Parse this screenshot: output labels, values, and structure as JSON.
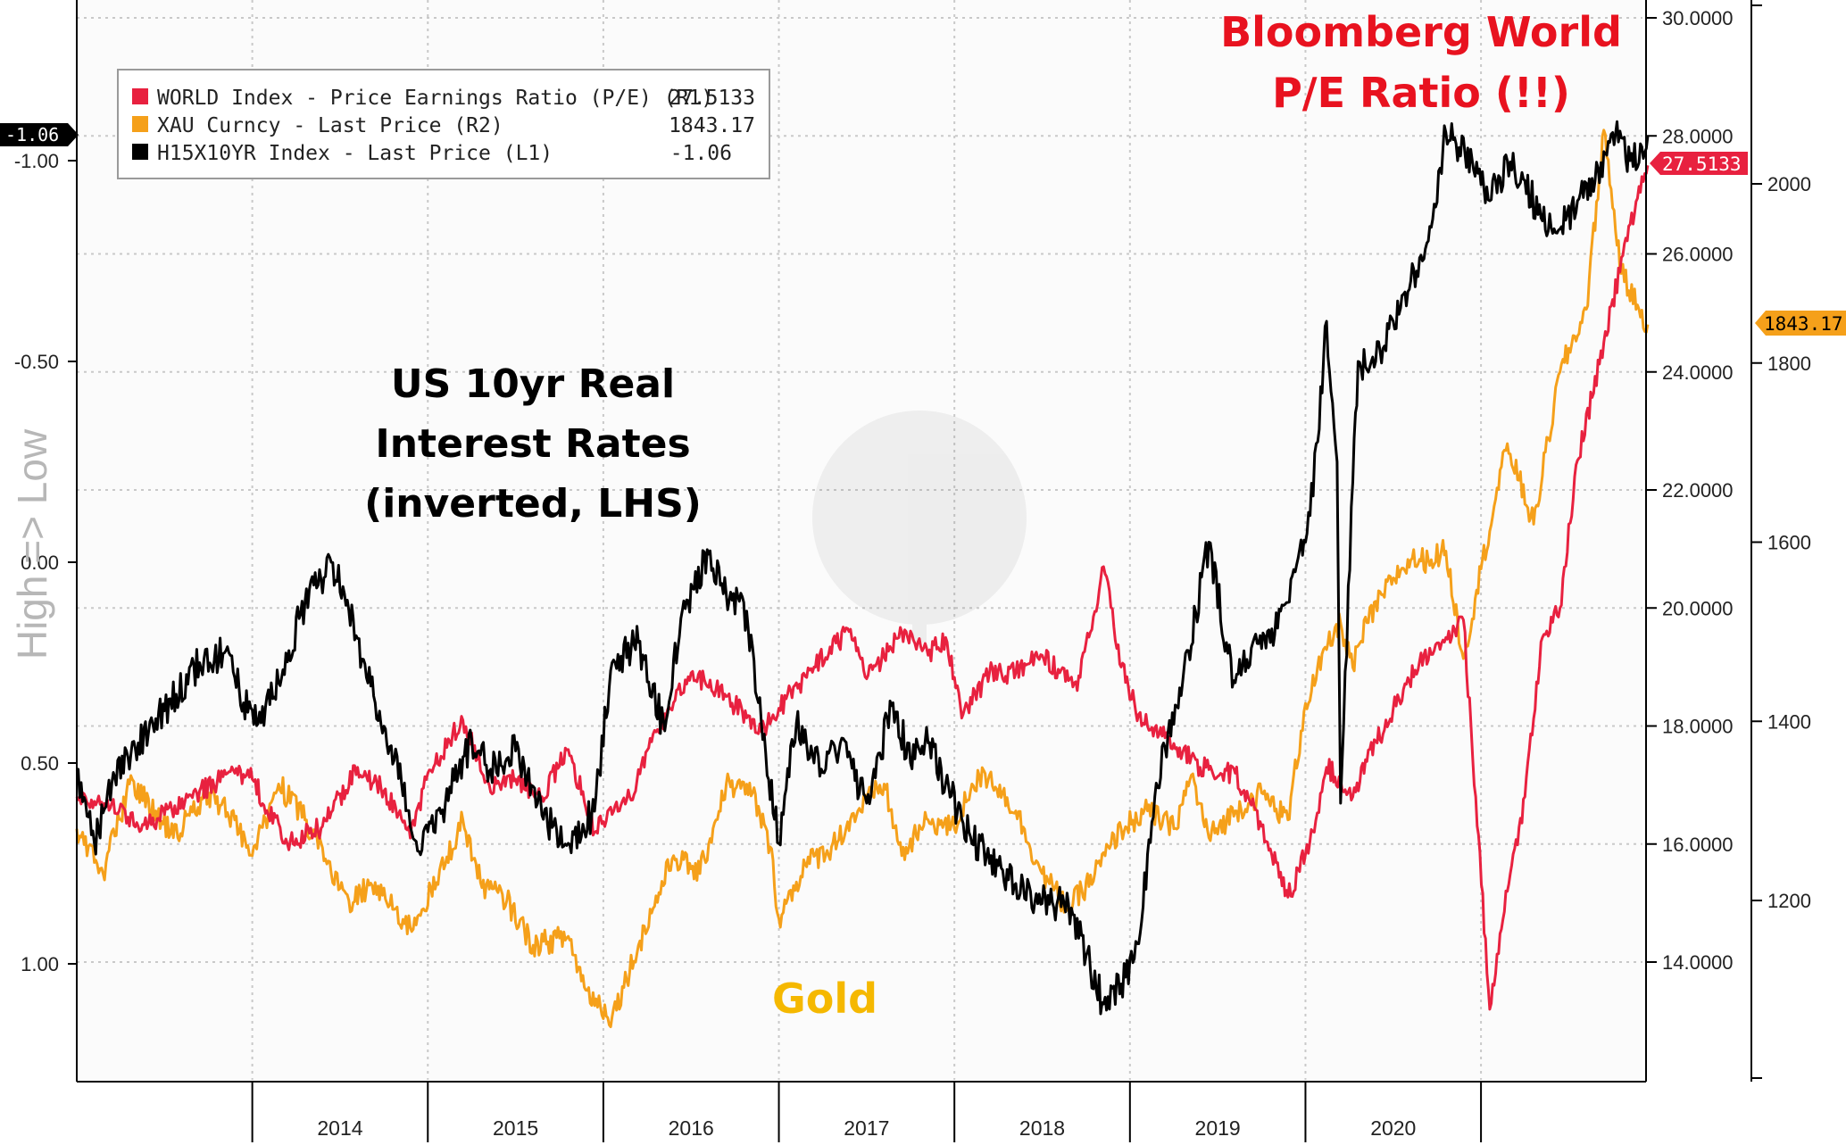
{
  "chart_data": {
    "type": "line",
    "title": "",
    "xlabel": "",
    "ylabel": "High => Low",
    "x_tick_labels": [
      "2014",
      "2015",
      "2016",
      "2017",
      "2018",
      "2019",
      "2020"
    ],
    "left_axis": {
      "inverted": true,
      "ylim": [
        1.3,
        -1.4
      ],
      "tick_labels": [
        "-1.00",
        "-0.50",
        "0.00",
        "0.50",
        "1.00"
      ],
      "tick_values": [
        -1.0,
        -0.5,
        0.0,
        0.5,
        1.0
      ]
    },
    "right_axis_1": {
      "ylim": [
        12.0,
        30.0
      ],
      "tick_labels": [
        "30.0000",
        "28.0000",
        "26.0000",
        "24.0000",
        "22.0000",
        "20.0000",
        "18.0000",
        "16.0000",
        "14.0000"
      ],
      "tick_values": [
        30,
        28,
        26,
        24,
        22,
        20,
        18,
        16,
        14
      ]
    },
    "right_axis_2": {
      "ylim": [
        1000,
        2200
      ],
      "tick_labels": [
        "2000",
        "1800",
        "1600",
        "1400",
        "1200"
      ],
      "tick_values": [
        2000,
        1800,
        1600,
        1400,
        1200
      ]
    },
    "legend": {
      "placement": "top-left",
      "entries": [
        {
          "name": "WORLD Index - Price Earnings Ratio (P/E) (R1)",
          "value": "27.5133",
          "color": "#e8213f"
        },
        {
          "name": "XAU Curncy - Last Price (R2)",
          "value": "1843.17",
          "color": "#f5a01a"
        },
        {
          "name": "H15X10YR Index - Last Price (L1)",
          "value": "-1.06",
          "color": "#000000"
        }
      ]
    },
    "last_value_tags": {
      "left": "-1.06",
      "r1": "27.5133",
      "r2": "1843.17"
    },
    "annotations": {
      "real_rates": [
        "US 10yr Real",
        "Interest Rates",
        "(inverted, LHS)"
      ],
      "gold": "Gold",
      "pe": [
        "Bloomberg World",
        "P/E Ratio (!!)"
      ]
    },
    "grid": true,
    "series": [
      {
        "key": "pe",
        "axis": "r1",
        "color": "#e8213f",
        "x": [
          2013.0,
          2013.2,
          2013.35,
          2013.5,
          2013.7,
          2013.9,
          2014.0,
          2014.2,
          2014.4,
          2014.6,
          2014.75,
          2014.9,
          2015.0,
          2015.2,
          2015.35,
          2015.5,
          2015.65,
          2015.8,
          2015.95,
          2016.05,
          2016.15,
          2016.3,
          2016.5,
          2016.7,
          2016.9,
          2017.0,
          2017.2,
          2017.4,
          2017.5,
          2017.7,
          2017.85,
          2017.95,
          2018.05,
          2018.2,
          2018.35,
          2018.5,
          2018.7,
          2018.85,
          2018.95,
          2019.05,
          2019.2,
          2019.4,
          2019.6,
          2019.75,
          2019.9,
          2020.05,
          2020.12,
          2020.2,
          2020.27,
          2020.35,
          2020.5,
          2020.65,
          2020.8,
          2020.9,
          2020.97,
          2021.05,
          2021.15,
          2021.25,
          2021.35,
          2021.45,
          2021.55,
          2021.7,
          2021.85,
          2021.95
        ],
        "y": [
          16.8,
          16.7,
          16.3,
          16.5,
          16.9,
          17.2,
          17.1,
          16.0,
          16.3,
          17.3,
          16.9,
          16.1,
          17.2,
          18.1,
          17.0,
          17.1,
          16.8,
          17.6,
          16.2,
          16.5,
          16.8,
          17.9,
          18.9,
          18.5,
          17.9,
          18.3,
          19.0,
          19.6,
          18.8,
          19.6,
          19.2,
          19.5,
          18.2,
          18.9,
          18.9,
          19.2,
          18.6,
          20.7,
          19.0,
          18.2,
          17.8,
          17.3,
          17.2,
          16.3,
          15.1,
          16.2,
          17.3,
          17.1,
          16.8,
          17.4,
          18.3,
          19.1,
          19.5,
          19.8,
          16.8,
          13.2,
          15.2,
          16.8,
          19.5,
          20.0,
          22.5,
          24.5,
          26.5,
          27.5
        ]
      },
      {
        "key": "gold",
        "axis": "r2",
        "color": "#f5a01a",
        "x": [
          2013.0,
          2013.15,
          2013.3,
          2013.45,
          2013.55,
          2013.75,
          2013.9,
          2014.0,
          2014.15,
          2014.3,
          2014.45,
          2014.55,
          2014.7,
          2014.8,
          2014.9,
          2015.05,
          2015.2,
          2015.3,
          2015.45,
          2015.6,
          2015.8,
          2015.9,
          2016.05,
          2016.2,
          2016.4,
          2016.55,
          2016.7,
          2016.85,
          2016.95,
          2017.0,
          2017.15,
          2017.3,
          2017.45,
          2017.6,
          2017.7,
          2017.85,
          2018.0,
          2018.1,
          2018.2,
          2018.35,
          2018.5,
          2018.65,
          2018.8,
          2018.95,
          2019.1,
          2019.25,
          2019.35,
          2019.45,
          2019.6,
          2019.75,
          2019.9,
          2020.0,
          2020.12,
          2020.2,
          2020.27,
          2020.35,
          2020.5,
          2020.6,
          2020.7,
          2020.8,
          2020.9,
          2021.0,
          2021.15,
          2021.3,
          2021.45,
          2021.6,
          2021.7,
          2021.8,
          2021.9,
          2021.95
        ],
        "y": [
          1280,
          1230,
          1330,
          1300,
          1270,
          1320,
          1290,
          1250,
          1330,
          1290,
          1230,
          1200,
          1220,
          1190,
          1170,
          1220,
          1290,
          1220,
          1200,
          1150,
          1160,
          1100,
          1070,
          1150,
          1250,
          1230,
          1330,
          1320,
          1260,
          1180,
          1240,
          1260,
          1300,
          1330,
          1250,
          1290,
          1280,
          1330,
          1340,
          1300,
          1230,
          1190,
          1230,
          1280,
          1300,
          1280,
          1340,
          1270,
          1300,
          1320,
          1290,
          1420,
          1480,
          1510,
          1460,
          1510,
          1560,
          1580,
          1580,
          1590,
          1470,
          1570,
          1710,
          1620,
          1790,
          1860,
          2060,
          1900,
          1860,
          1843
        ]
      },
      {
        "key": "real_rate",
        "axis": "l1",
        "color": "#000000",
        "x": [
          2013.0,
          2013.1,
          2013.2,
          2013.35,
          2013.5,
          2013.7,
          2013.85,
          2013.95,
          2014.05,
          2014.15,
          2014.3,
          2014.45,
          2014.55,
          2014.7,
          2014.85,
          2014.95,
          2015.1,
          2015.25,
          2015.35,
          2015.5,
          2015.65,
          2015.8,
          2015.95,
          2016.05,
          2016.2,
          2016.35,
          2016.45,
          2016.6,
          2016.7,
          2016.8,
          2016.9,
          2017.0,
          2017.1,
          2017.2,
          2017.35,
          2017.5,
          2017.65,
          2017.75,
          2017.85,
          2017.95,
          2018.05,
          2018.2,
          2018.35,
          2018.5,
          2018.65,
          2018.75,
          2018.85,
          2018.95,
          2019.05,
          2019.15,
          2019.3,
          2019.45,
          2019.55,
          2019.6,
          2019.7,
          2019.8,
          2019.9,
          2020.0,
          2020.07,
          2020.12,
          2020.18,
          2020.2,
          2020.27,
          2020.3,
          2020.4,
          2020.5,
          2020.6,
          2020.7,
          2020.8,
          2020.95,
          2021.05,
          2021.15,
          2021.25,
          2021.35,
          2021.45,
          2021.55,
          2021.65,
          2021.75,
          2021.85,
          2021.95
        ],
        "y": [
          0.52,
          0.7,
          0.55,
          0.45,
          0.37,
          0.25,
          0.22,
          0.35,
          0.4,
          0.3,
          0.1,
          0.0,
          0.12,
          0.35,
          0.55,
          0.72,
          0.6,
          0.44,
          0.52,
          0.47,
          0.63,
          0.7,
          0.62,
          0.25,
          0.2,
          0.42,
          0.12,
          -0.02,
          0.08,
          0.1,
          0.4,
          0.7,
          0.4,
          0.5,
          0.45,
          0.6,
          0.35,
          0.5,
          0.45,
          0.55,
          0.65,
          0.75,
          0.8,
          0.85,
          0.85,
          0.98,
          1.1,
          1.05,
          0.95,
          0.55,
          0.3,
          -0.05,
          0.2,
          0.3,
          0.2,
          0.2,
          0.1,
          -0.05,
          -0.3,
          -0.6,
          -0.25,
          0.6,
          -0.2,
          -0.5,
          -0.5,
          -0.6,
          -0.7,
          -0.8,
          -1.07,
          -1.0,
          -0.9,
          -1.0,
          -0.95,
          -0.85,
          -0.83,
          -0.9,
          -0.95,
          -1.07,
          -1.0,
          -1.06
        ]
      }
    ]
  }
}
